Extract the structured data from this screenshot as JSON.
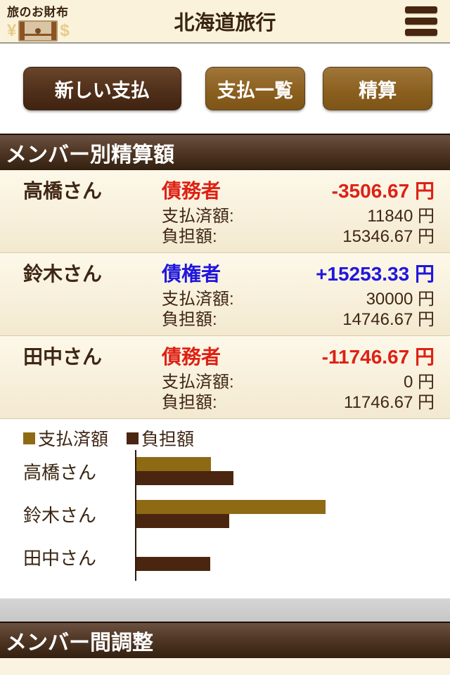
{
  "header": {
    "logo_title": "旅のお財布",
    "logo_yen": "¥",
    "logo_dollar": "$",
    "title": "北海道旅行"
  },
  "toolbar": {
    "new_payment": "新しい支払",
    "payment_list": "支払一覧",
    "settle": "精算"
  },
  "sections": {
    "member_settlement": "メンバー別精算額",
    "member_adjustment": "メンバー間調整"
  },
  "labels": {
    "paid_label": "支払済額:",
    "burden_label": "負担額:",
    "yen": "円"
  },
  "members": [
    {
      "name": "高橋さん",
      "role": "債務者",
      "role_type": "debtor",
      "balance": "-3506.67",
      "paid": "11840",
      "burden": "15346.67"
    },
    {
      "name": "鈴木さん",
      "role": "債権者",
      "role_type": "creditor",
      "balance": "+15253.33",
      "paid": "30000",
      "burden": "14746.67"
    },
    {
      "name": "田中さん",
      "role": "債務者",
      "role_type": "debtor",
      "balance": "-11746.67",
      "paid": "0",
      "burden": "11746.67"
    }
  ],
  "colors": {
    "debtor": "#de2115",
    "creditor": "#2016dd",
    "paid_bar": "#8e6a14",
    "burden_bar": "#4a2610",
    "header_cream": "#faf2da",
    "section_brown": "#44301e",
    "text_brown": "#3a2410"
  },
  "chart_data": {
    "type": "bar",
    "orientation": "horizontal",
    "title": "",
    "categories": [
      "高橋さん",
      "鈴木さん",
      "田中さん"
    ],
    "series": [
      {
        "name": "支払済額",
        "color": "#8e6a14",
        "values": [
          11840,
          30000,
          0
        ]
      },
      {
        "name": "負担額",
        "color": "#4a2610",
        "values": [
          15346.67,
          14746.67,
          11746.67
        ]
      }
    ],
    "xmax": 30000,
    "unit": "円",
    "grid": false,
    "legend_position": "top"
  }
}
